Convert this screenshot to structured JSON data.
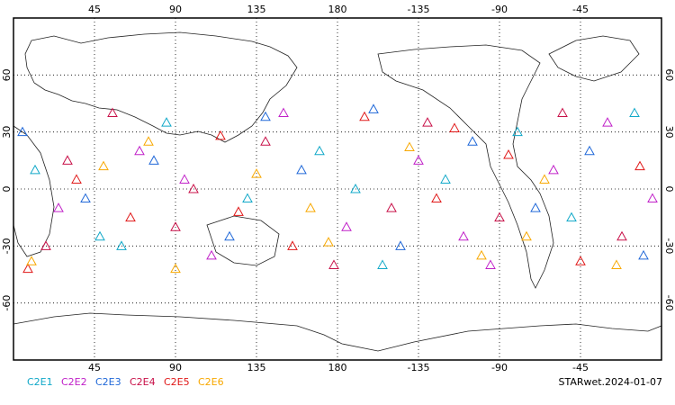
{
  "chart_data": {
    "type": "scatter",
    "marker": "triangle",
    "xlim": [
      0,
      360
    ],
    "ylim": [
      -90,
      90
    ],
    "xticks": [
      45,
      90,
      135,
      180,
      {
        "value": 225,
        "label": "-135"
      },
      {
        "value": 270,
        "label": "-90"
      },
      {
        "value": 315,
        "label": "-45"
      }
    ],
    "yticks": [
      60,
      30,
      0,
      -30,
      -60
    ],
    "grid": true,
    "annotation": "STARwet.2024-01-07",
    "series": [
      {
        "name": "C2E1",
        "color": "#10a8c8",
        "x": [
          12,
          48,
          85,
          130,
          170,
          205,
          240,
          280,
          310,
          345,
          60,
          190
        ],
        "y": [
          10,
          -25,
          35,
          -5,
          20,
          -40,
          5,
          30,
          -15,
          40,
          -30,
          0
        ]
      },
      {
        "name": "C2E2",
        "color": "#c020c8",
        "x": [
          25,
          70,
          110,
          150,
          185,
          225,
          265,
          300,
          330,
          355,
          95,
          250
        ],
        "y": [
          -10,
          20,
          -35,
          40,
          -20,
          15,
          -40,
          10,
          35,
          -5,
          5,
          -25
        ]
      },
      {
        "name": "C2E3",
        "color": "#2068d8",
        "x": [
          5,
          40,
          78,
          120,
          160,
          215,
          255,
          290,
          320,
          350,
          140,
          200
        ],
        "y": [
          30,
          -5,
          15,
          -25,
          10,
          -30,
          25,
          -10,
          20,
          -35,
          38,
          42
        ]
      },
      {
        "name": "C2E4",
        "color": "#c81048",
        "x": [
          18,
          55,
          100,
          140,
          178,
          230,
          270,
          305,
          338,
          90,
          210,
          30
        ],
        "y": [
          -30,
          40,
          0,
          25,
          -40,
          35,
          -15,
          40,
          -25,
          -20,
          -10,
          15
        ]
      },
      {
        "name": "C2E5",
        "color": "#e01818",
        "x": [
          35,
          65,
          115,
          155,
          195,
          235,
          275,
          315,
          348,
          8,
          125,
          245
        ],
        "y": [
          5,
          -15,
          28,
          -30,
          38,
          -5,
          18,
          -38,
          12,
          -42,
          -12,
          32
        ]
      },
      {
        "name": "C2E6",
        "color": "#f8a800",
        "x": [
          10,
          50,
          90,
          135,
          175,
          220,
          260,
          295,
          335,
          75,
          165,
          285
        ],
        "y": [
          -38,
          12,
          -42,
          8,
          -28,
          22,
          -35,
          5,
          -40,
          25,
          -10,
          -25
        ]
      }
    ]
  }
}
